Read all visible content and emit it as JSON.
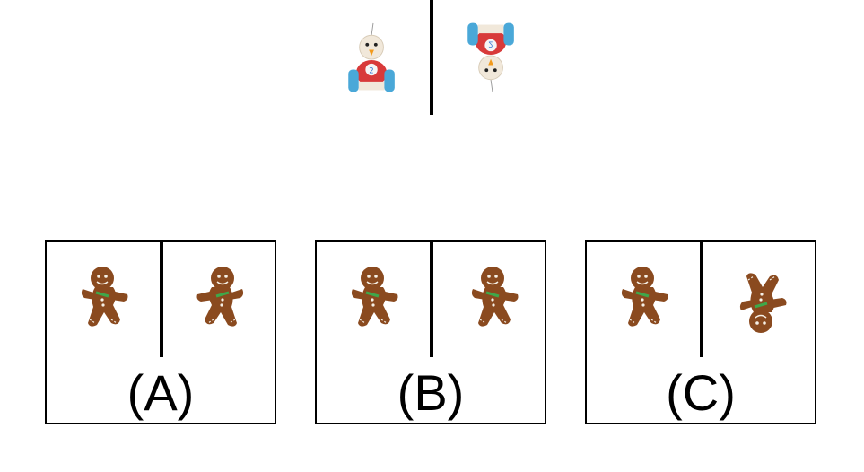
{
  "colors": {
    "toy_body_red": "#d83a3a",
    "toy_wheel_blue": "#4aa8d8",
    "toy_head_cream": "#f1e8da",
    "toy_beak_orange": "#f29a1c",
    "gingerbread_brown": "#8a4a1f",
    "gingerbread_icing": "#f5f0e6",
    "gingerbread_scarf_green": "#3fa84a",
    "line": "#000000"
  },
  "example": {
    "left_figure": "toy-car-icon",
    "right_figure": "toy-car-icon",
    "transform": "flip-vertical"
  },
  "options": [
    {
      "label": "(A)",
      "left_figure": "gingerbread-man-icon",
      "right_figure": "gingerbread-man-icon"
    },
    {
      "label": "(B)",
      "left_figure": "gingerbread-man-icon",
      "right_figure": "gingerbread-man-icon"
    },
    {
      "label": "(C)",
      "left_figure": "gingerbread-man-icon",
      "right_figure": "gingerbread-man-icon"
    }
  ]
}
